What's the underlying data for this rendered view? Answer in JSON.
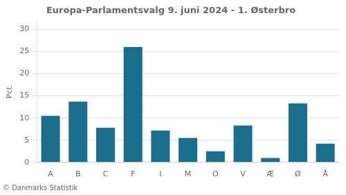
{
  "chart_data": {
    "type": "bar",
    "title": "Europa-Parlamentsvalg 9. juni 2024 - 1. Østerbro",
    "categories": [
      "A",
      "B",
      "C",
      "F",
      "I",
      "M",
      "O",
      "V",
      "Æ",
      "Ø",
      "Å"
    ],
    "values": [
      10.5,
      13.7,
      7.8,
      26.0,
      7.2,
      5.5,
      2.5,
      8.3,
      1.0,
      13.3,
      4.2
    ],
    "color": "#1a6e8e",
    "ylim": [
      0,
      32
    ],
    "yticks": [
      0,
      5,
      10,
      15,
      20,
      25,
      30
    ],
    "ylabel": "Pct.",
    "annotations": [
      "© Danmarks Statistik"
    ],
    "grid": true
  }
}
